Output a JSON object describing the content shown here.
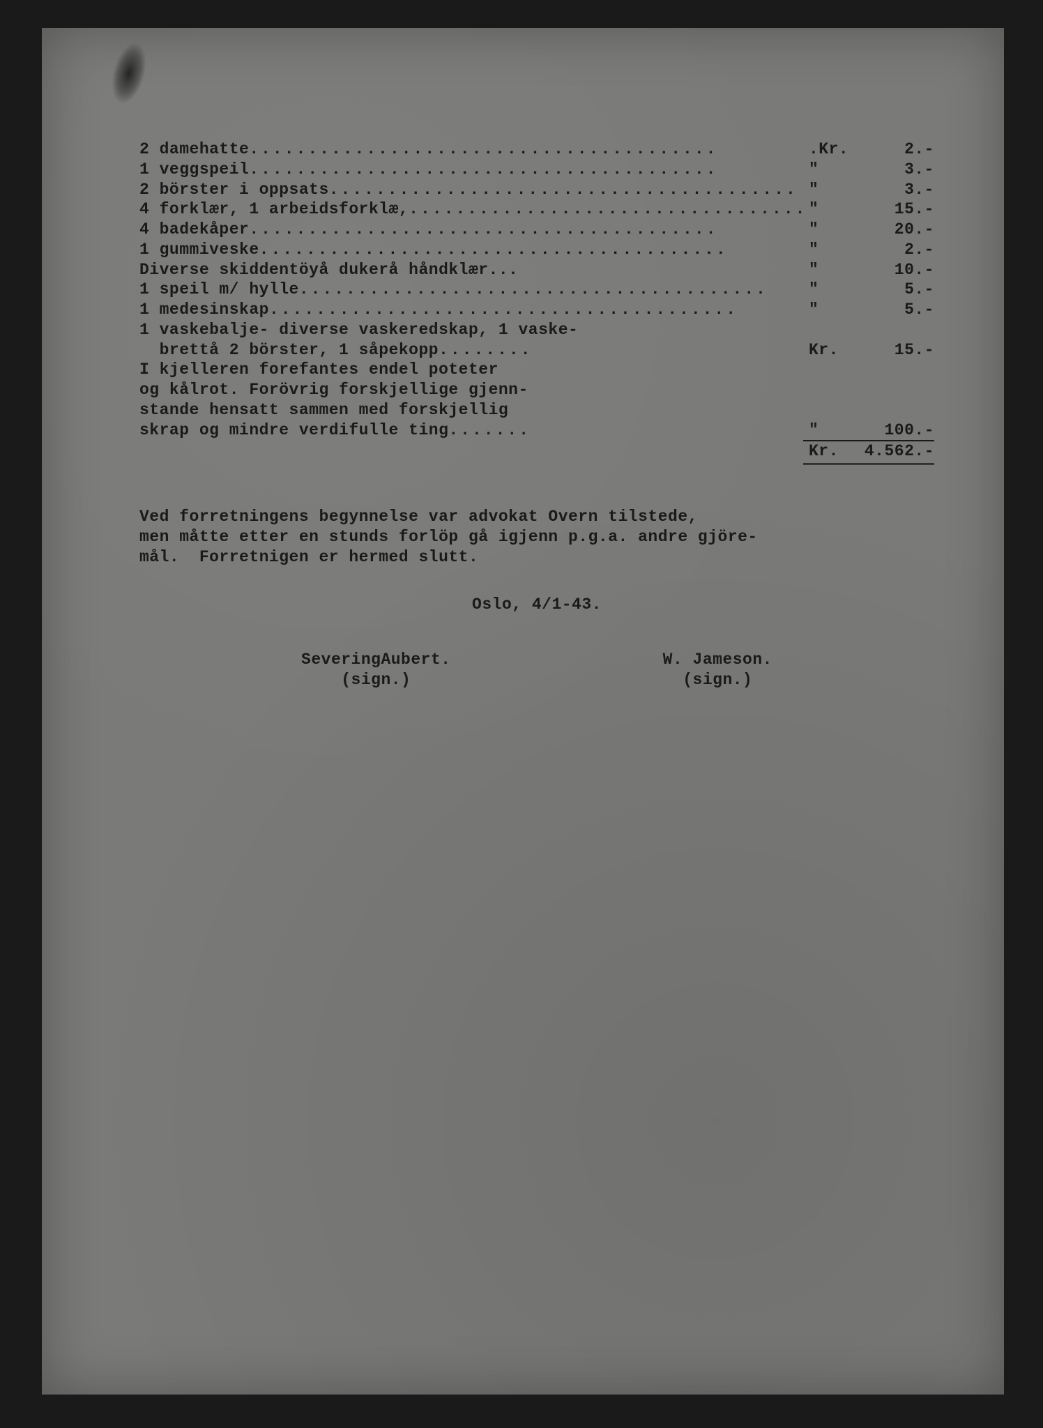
{
  "items": [
    {
      "desc": "2 damehatte",
      "cur": ".Kr.",
      "amt": "2.-"
    },
    {
      "desc": "1 veggspeil",
      "cur": "\"",
      "amt": "3.-"
    },
    {
      "desc": "2 börster i oppsats",
      "cur": "\"",
      "amt": "3.-"
    },
    {
      "desc": "4 forklær, 1 arbeidsforklæ,",
      "cur": "\"",
      "amt": "15.-"
    },
    {
      "desc": "4 badekåper",
      "cur": "\"",
      "amt": "20.-"
    },
    {
      "desc": "1 gummiveske",
      "cur": "\"",
      "amt": "2.-"
    },
    {
      "desc": "Diverse skiddentöyå dukerå håndklær...",
      "cur": "\"",
      "amt": "10.-",
      "nodots": true
    },
    {
      "desc": "1 speil m/ hylle",
      "cur": "\"",
      "amt": "5.-"
    },
    {
      "desc": "1 medesinskap",
      "cur": "\"",
      "amt": "5.-"
    }
  ],
  "block1": {
    "line1": "1 vaskebalje- diverse vaskeredskap, 1 vaske-",
    "line2_desc": "  brettå 2 börster, 1 såpekopp",
    "cur": "Kr.",
    "amt": "15.-"
  },
  "block2": {
    "line1": "I kjelleren forefantes endel poteter",
    "line2": "og kålrot. Forövrig forskjellige gjenn-",
    "line3": "stande hensatt sammen med forskjellig",
    "line4_desc": "skrap og mindre verdifulle ting",
    "cur": "\"",
    "amt": "100.-"
  },
  "total": {
    "cur": "Kr.",
    "amt": "4.562.-"
  },
  "paragraph": "Ved forretningens begynnelse var advokat Overn tilstede,\nmen måtte etter en stunds forlöp gå igjenn p.g.a. andre gjöre-\nmål.  Forretnigen er hermed slutt.",
  "dateplace": "Oslo, 4/1-43.",
  "sig1_name": "SeveringAubert.",
  "sig1_sign": "(sign.)",
  "sig2_name": "W. Jameson.",
  "sig2_sign": "(sign.)"
}
